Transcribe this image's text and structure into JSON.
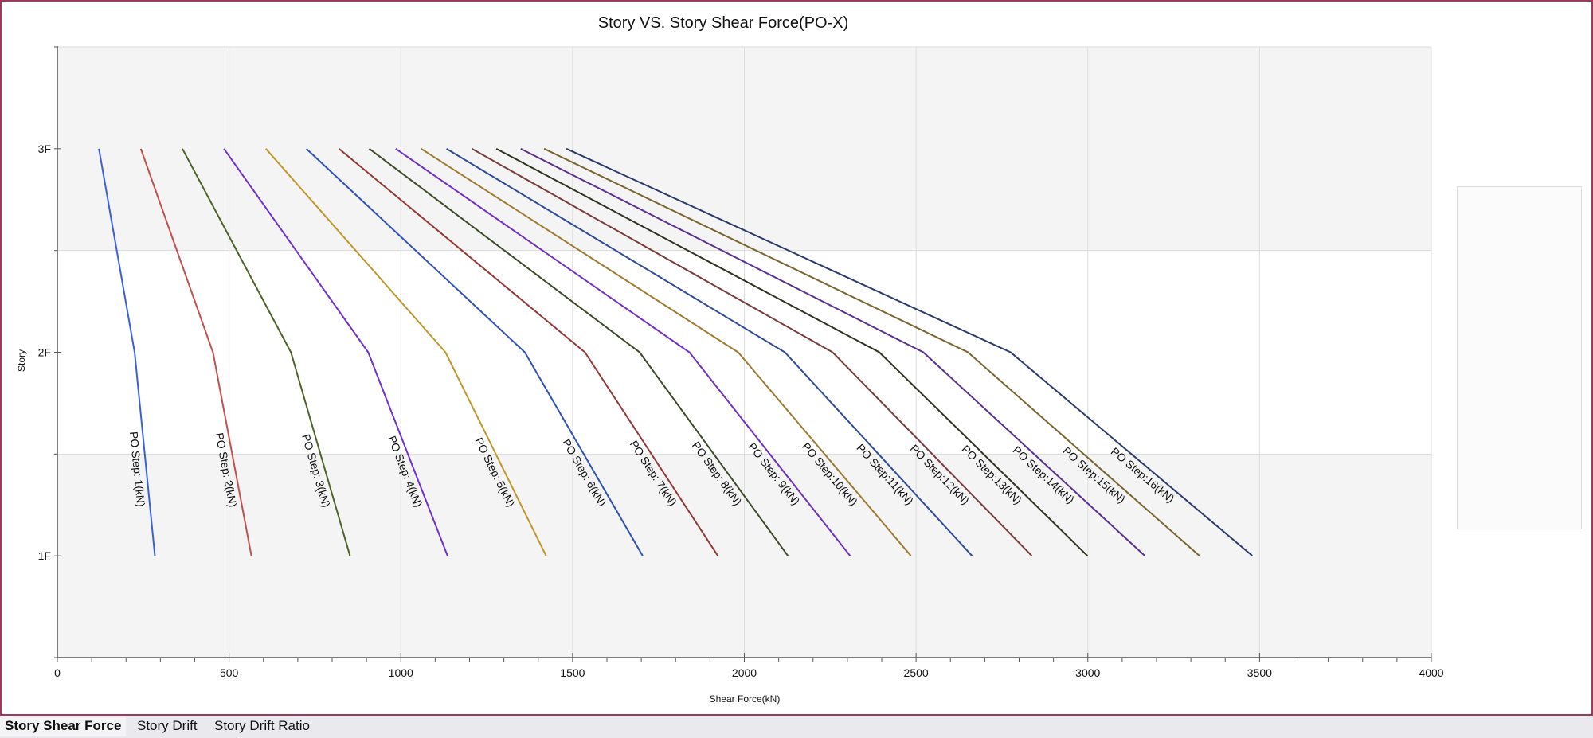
{
  "tabs": [
    {
      "label": "Story Shear Force",
      "active": true
    },
    {
      "label": "Story Drift",
      "active": false
    },
    {
      "label": "Story Drift Ratio",
      "active": false
    }
  ],
  "colors": {
    "frame_border": "#9c3a5a",
    "plot_band": "#f4f4f4",
    "grid": "#dcdcdc"
  },
  "chart_data": {
    "type": "line",
    "title": "Story VS. Story Shear Force(PO-X)",
    "xlabel": "Shear Force(kN)",
    "ylabel": "Story",
    "xlim": [
      0,
      4000
    ],
    "x_ticks": [
      "0",
      "500",
      "1000",
      "1500",
      "2000",
      "2500",
      "3000",
      "3500",
      "4000"
    ],
    "y_categories": [
      "1F",
      "2F",
      "3F"
    ],
    "ylim": [
      0.5,
      3.5
    ],
    "grid": true,
    "legend": "right (empty)",
    "series": [
      {
        "name": "PO Step: 1(kN)",
        "color": "#3a5fd9",
        "values": [
          284,
          225,
          121
        ]
      },
      {
        "name": "PO Step: 2(kN)",
        "color": "#c0504d",
        "values": [
          565,
          453,
          243
        ]
      },
      {
        "name": "PO Step: 3(kN)",
        "color": "#4f6228",
        "values": [
          852,
          680,
          364
        ]
      },
      {
        "name": "PO Step: 4(kN)",
        "color": "#7030d0",
        "values": [
          1136,
          905,
          485
        ]
      },
      {
        "name": "PO Step: 5(kN)",
        "color": "#c0962a",
        "values": [
          1423,
          1130,
          607
        ]
      },
      {
        "name": "PO Step: 6(kN)",
        "color": "#2f50b8",
        "values": [
          1704,
          1361,
          725
        ]
      },
      {
        "name": "PO Step: 7(kN)",
        "color": "#953735",
        "values": [
          1923,
          1536,
          820
        ]
      },
      {
        "name": "PO Step: 8(kN)",
        "color": "#3c4a28",
        "values": [
          2127,
          1695,
          908
        ]
      },
      {
        "name": "PO Step: 9(kN)",
        "color": "#7030c0",
        "values": [
          2308,
          1840,
          985
        ]
      },
      {
        "name": "PO Step:10(kN)",
        "color": "#9c7a30",
        "values": [
          2485,
          1982,
          1059
        ]
      },
      {
        "name": "PO Step:11(kN)",
        "color": "#2e4a9a",
        "values": [
          2663,
          2118,
          1133
        ]
      },
      {
        "name": "PO Step:12(kN)",
        "color": "#7a3a3a",
        "values": [
          2837,
          2257,
          1207
        ]
      },
      {
        "name": "PO Step:13(kN)",
        "color": "#2c3320",
        "values": [
          2999,
          2393,
          1278
        ]
      },
      {
        "name": "PO Step:14(kN)",
        "color": "#5a3090",
        "values": [
          3166,
          2521,
          1349
        ]
      },
      {
        "name": "PO Step:15(kN)",
        "color": "#7a6530",
        "values": [
          3325,
          2651,
          1417
        ]
      },
      {
        "name": "PO Step:16(kN)",
        "color": "#2a3a6a",
        "values": [
          3479,
          2775,
          1482
        ]
      }
    ]
  }
}
